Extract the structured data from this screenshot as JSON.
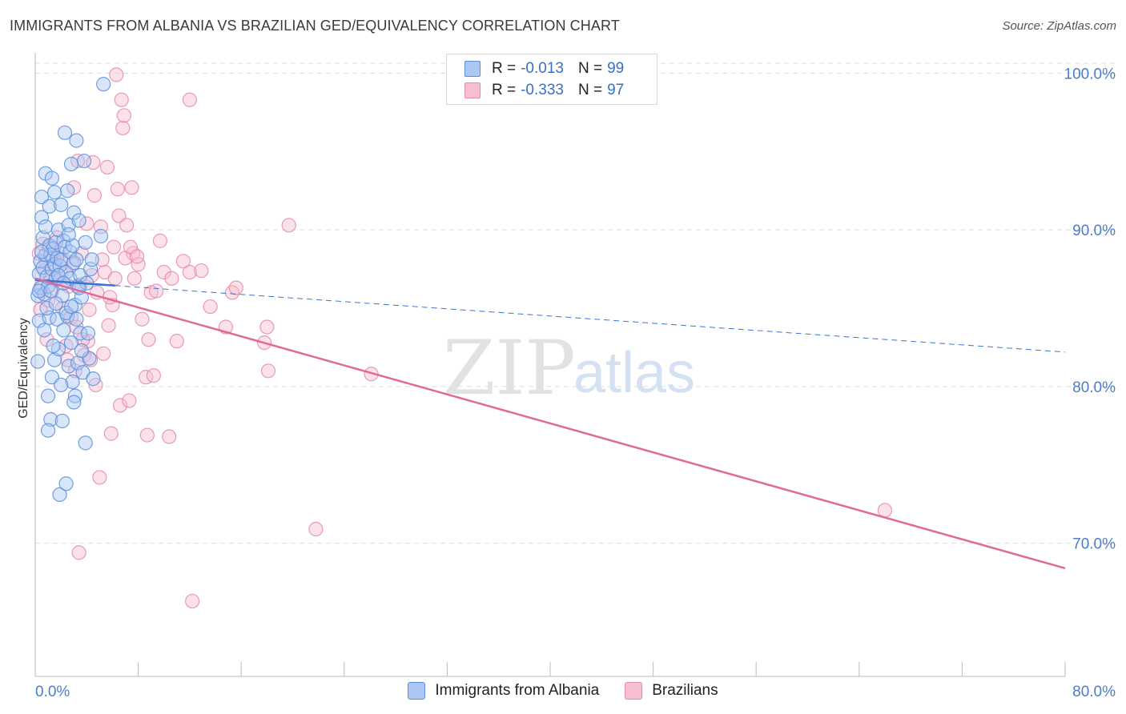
{
  "title": "IMMIGRANTS FROM ALBANIA VS BRAZILIAN GED/EQUIVALENCY CORRELATION CHART",
  "source": "Source: ZipAtlas.com",
  "watermark": {
    "zip": "ZIP",
    "atlas": "atlas"
  },
  "legend": {
    "series": [
      {
        "name": "Immigrants from Albania",
        "r_label": "R =",
        "r_value": "-0.013",
        "n_label": "N =",
        "n_value": "99",
        "fill": "#aac8f3",
        "stroke": "#5b8fdb",
        "line": "#3b74d3"
      },
      {
        "name": "Brazilians",
        "r_label": "R =",
        "r_value": "-0.333",
        "n_label": "N =",
        "n_value": "97",
        "fill": "#f6bed0",
        "stroke": "#e58aa9",
        "line": "#e06a95"
      }
    ]
  },
  "chart_data": {
    "type": "scatter",
    "title": "IMMIGRANTS FROM ALBANIA VS BRAZILIAN GED/EQUIVALENCY CORRELATION CHART",
    "xlabel": "",
    "ylabel": "GED/Equivalency",
    "xlim": [
      0,
      80
    ],
    "ylim": [
      61.5,
      101.3
    ],
    "x_tick_labels": [
      "0.0%",
      "80.0%"
    ],
    "y_ticks": [
      70,
      80,
      90,
      100
    ],
    "y_tick_labels": [
      "70.0%",
      "80.0%",
      "90.0%",
      "100.0%"
    ],
    "grid": "horizontal dashed",
    "series": [
      {
        "name": "Immigrants from Albania",
        "trend": {
          "x": [
            0,
            80
          ],
          "y": [
            86.8,
            82.2
          ],
          "solid_until": 6.2
        },
        "points": [
          [
            0.2,
            85.8
          ],
          [
            0.2,
            81.6
          ],
          [
            0.3,
            87.2
          ],
          [
            0.3,
            84.2
          ],
          [
            0.4,
            88.0
          ],
          [
            0.4,
            86.3
          ],
          [
            0.5,
            90.8
          ],
          [
            0.5,
            92.1
          ],
          [
            0.6,
            89.5
          ],
          [
            0.6,
            87.6
          ],
          [
            0.7,
            85.9
          ],
          [
            0.7,
            83.6
          ],
          [
            0.8,
            93.6
          ],
          [
            0.8,
            90.2
          ],
          [
            0.8,
            88.4
          ],
          [
            0.9,
            87.0
          ],
          [
            1.0,
            86.4
          ],
          [
            1.0,
            79.4
          ],
          [
            1.1,
            91.5
          ],
          [
            1.1,
            89.0
          ],
          [
            1.1,
            84.4
          ],
          [
            1.2,
            88.4
          ],
          [
            1.2,
            77.9
          ],
          [
            1.3,
            93.3
          ],
          [
            1.3,
            87.5
          ],
          [
            1.3,
            80.6
          ],
          [
            1.4,
            88.8
          ],
          [
            1.5,
            92.4
          ],
          [
            1.5,
            87.8
          ],
          [
            1.5,
            81.7
          ],
          [
            1.6,
            89.2
          ],
          [
            1.6,
            86.9
          ],
          [
            1.7,
            88.2
          ],
          [
            1.7,
            84.3
          ],
          [
            1.8,
            90.0
          ],
          [
            1.8,
            82.4
          ],
          [
            1.9,
            87.7
          ],
          [
            1.9,
            73.1
          ],
          [
            2.0,
            91.6
          ],
          [
            2.0,
            88.1
          ],
          [
            2.1,
            85.8
          ],
          [
            2.1,
            77.8
          ],
          [
            2.2,
            89.3
          ],
          [
            2.2,
            83.6
          ],
          [
            2.3,
            96.2
          ],
          [
            2.3,
            88.9
          ],
          [
            2.4,
            87.3
          ],
          [
            2.4,
            73.8
          ],
          [
            2.5,
            92.5
          ],
          [
            2.5,
            84.5
          ],
          [
            2.6,
            90.3
          ],
          [
            2.6,
            81.3
          ],
          [
            2.7,
            88.6
          ],
          [
            2.7,
            86.9
          ],
          [
            2.8,
            94.2
          ],
          [
            2.8,
            82.8
          ],
          [
            2.9,
            89.0
          ],
          [
            2.9,
            80.3
          ],
          [
            3.0,
            91.1
          ],
          [
            3.0,
            87.9
          ],
          [
            3.1,
            85.2
          ],
          [
            3.1,
            79.4
          ],
          [
            3.2,
            95.7
          ],
          [
            3.2,
            88.1
          ],
          [
            3.3,
            86.4
          ],
          [
            3.3,
            81.5
          ],
          [
            3.4,
            90.6
          ],
          [
            3.5,
            87.1
          ],
          [
            3.5,
            83.4
          ],
          [
            3.6,
            85.7
          ],
          [
            3.7,
            80.9
          ],
          [
            3.8,
            94.4
          ],
          [
            3.9,
            89.2
          ],
          [
            3.9,
            76.4
          ],
          [
            4.0,
            86.6
          ],
          [
            4.1,
            83.4
          ],
          [
            4.2,
            81.8
          ],
          [
            4.3,
            87.5
          ],
          [
            4.5,
            80.5
          ],
          [
            5.1,
            89.6
          ],
          [
            5.3,
            99.3
          ],
          [
            0.3,
            86.1
          ],
          [
            0.5,
            88.6
          ],
          [
            0.9,
            85.0
          ],
          [
            1.2,
            86.1
          ],
          [
            1.4,
            82.6
          ],
          [
            1.6,
            85.3
          ],
          [
            1.8,
            87.1
          ],
          [
            2.0,
            80.1
          ],
          [
            2.2,
            86.6
          ],
          [
            2.4,
            84.7
          ],
          [
            2.6,
            89.7
          ],
          [
            2.8,
            85.1
          ],
          [
            3.0,
            79.0
          ],
          [
            3.2,
            84.3
          ],
          [
            3.4,
            86.3
          ],
          [
            3.6,
            82.3
          ],
          [
            1.0,
            77.2
          ],
          [
            4.4,
            88.1
          ]
        ]
      },
      {
        "name": "Brazilians",
        "trend": {
          "x": [
            0,
            80
          ],
          "y": [
            86.9,
            68.4
          ]
        },
        "points": [
          [
            0.3,
            88.5
          ],
          [
            0.4,
            84.9
          ],
          [
            0.5,
            86.3
          ],
          [
            0.6,
            89.1
          ],
          [
            0.7,
            87.4
          ],
          [
            0.8,
            88.0
          ],
          [
            1.0,
            85.5
          ],
          [
            1.1,
            88.9
          ],
          [
            1.2,
            87.0
          ],
          [
            1.4,
            88.3
          ],
          [
            1.6,
            86.8
          ],
          [
            1.8,
            88.6
          ],
          [
            2.0,
            87.2
          ],
          [
            2.2,
            88.1
          ],
          [
            2.4,
            82.6
          ],
          [
            2.6,
            86.4
          ],
          [
            2.8,
            84.4
          ],
          [
            3.0,
            92.7
          ],
          [
            3.1,
            81.0
          ],
          [
            3.2,
            83.8
          ],
          [
            3.3,
            94.4
          ],
          [
            3.4,
            69.4
          ],
          [
            3.5,
            86.5
          ],
          [
            3.6,
            88.5
          ],
          [
            3.8,
            82.0
          ],
          [
            4.0,
            90.4
          ],
          [
            4.1,
            82.9
          ],
          [
            4.2,
            84.9
          ],
          [
            4.4,
            87.1
          ],
          [
            4.5,
            94.3
          ],
          [
            4.6,
            92.2
          ],
          [
            4.7,
            80.1
          ],
          [
            4.8,
            86.0
          ],
          [
            5.0,
            74.2
          ],
          [
            5.1,
            90.2
          ],
          [
            5.3,
            82.1
          ],
          [
            5.4,
            87.3
          ],
          [
            5.6,
            94.0
          ],
          [
            5.7,
            83.9
          ],
          [
            5.9,
            77.0
          ],
          [
            6.0,
            85.2
          ],
          [
            6.1,
            88.9
          ],
          [
            6.3,
            99.9
          ],
          [
            6.4,
            92.6
          ],
          [
            6.5,
            90.9
          ],
          [
            6.6,
            78.8
          ],
          [
            6.7,
            98.3
          ],
          [
            6.8,
            96.5
          ],
          [
            6.9,
            97.3
          ],
          [
            7.1,
            90.3
          ],
          [
            7.3,
            79.1
          ],
          [
            7.5,
            92.7
          ],
          [
            7.6,
            88.5
          ],
          [
            7.7,
            86.9
          ],
          [
            8.0,
            87.8
          ],
          [
            8.3,
            84.3
          ],
          [
            8.6,
            80.6
          ],
          [
            8.7,
            76.9
          ],
          [
            9.0,
            86.0
          ],
          [
            9.2,
            80.7
          ],
          [
            9.7,
            89.3
          ],
          [
            10.0,
            87.3
          ],
          [
            10.4,
            76.8
          ],
          [
            11.0,
            82.9
          ],
          [
            12.0,
            98.3
          ],
          [
            12.0,
            87.3
          ],
          [
            12.2,
            66.3
          ],
          [
            13.6,
            85.1
          ],
          [
            14.8,
            83.8
          ],
          [
            15.3,
            86.0
          ],
          [
            15.6,
            86.3
          ],
          [
            17.8,
            82.8
          ],
          [
            18.0,
            83.8
          ],
          [
            18.1,
            81.0
          ],
          [
            19.7,
            90.3
          ],
          [
            21.8,
            70.9
          ],
          [
            26.1,
            80.8
          ],
          [
            66.0,
            72.1
          ],
          [
            0.9,
            83.0
          ],
          [
            1.3,
            86.1
          ],
          [
            1.7,
            89.5
          ],
          [
            2.1,
            85.0
          ],
          [
            2.5,
            81.7
          ],
          [
            2.9,
            87.8
          ],
          [
            3.7,
            83.0
          ],
          [
            4.3,
            81.7
          ],
          [
            5.2,
            88.1
          ],
          [
            5.8,
            85.7
          ],
          [
            6.2,
            86.9
          ],
          [
            7.0,
            88.2
          ],
          [
            7.4,
            88.9
          ],
          [
            7.9,
            88.3
          ],
          [
            8.8,
            83.0
          ],
          [
            9.4,
            86.1
          ],
          [
            10.6,
            86.9
          ],
          [
            11.5,
            88.0
          ],
          [
            12.9,
            87.4
          ]
        ]
      }
    ]
  }
}
